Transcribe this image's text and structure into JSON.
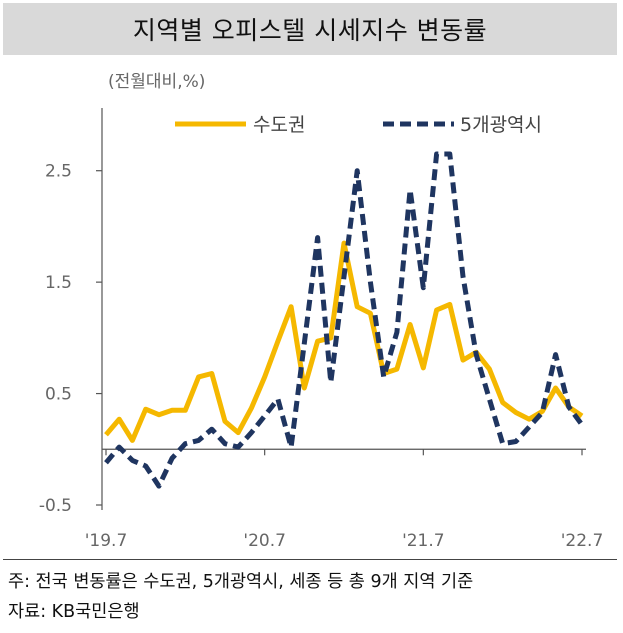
{
  "title": "지역별 오피스텔 시세지수 변동률",
  "footnotes": {
    "note": "주: 전국 변동률은 수도권, 5개광역시, 세종 등 총 9개 지역 기준",
    "source": "자료: KB국민은행"
  },
  "chart_data": {
    "type": "line",
    "ylabel": "(전월대비,%)",
    "ylim": [
      -0.5,
      3.0
    ],
    "yticks": [
      2.5,
      1.5,
      0.5,
      -0.5
    ],
    "ytick_labels": [
      "2.5",
      "1.5",
      "0.5",
      "-0.5"
    ],
    "xtick_labels": [
      "'19.7",
      "'20.7",
      "'21.7",
      "'22.7"
    ],
    "xtick_index": [
      0,
      12,
      24,
      36
    ],
    "zero_line": true,
    "grid": false,
    "legend_position": "top",
    "colors": {
      "capital": "#f5b800",
      "metro": "#1f3560"
    },
    "series": [
      {
        "name": "수도권",
        "style": "solid",
        "values": [
          0.13,
          0.27,
          0.08,
          0.36,
          0.31,
          0.35,
          0.35,
          0.65,
          0.68,
          0.25,
          0.15,
          0.37,
          0.65,
          0.97,
          1.28,
          0.55,
          0.97,
          1.0,
          1.85,
          1.28,
          1.22,
          0.68,
          0.72,
          1.12,
          0.73,
          1.25,
          1.3,
          0.8,
          0.87,
          0.72,
          0.42,
          0.33,
          0.27,
          0.34,
          0.55,
          0.38,
          0.3
        ]
      },
      {
        "name": "5개광역시",
        "style": "dashed",
        "values": [
          -0.12,
          0.02,
          -0.1,
          -0.15,
          -0.33,
          -0.08,
          0.05,
          0.08,
          0.18,
          0.05,
          0.02,
          0.15,
          0.3,
          0.45,
          0.02,
          0.95,
          1.9,
          0.6,
          1.55,
          2.5,
          1.5,
          0.65,
          1.05,
          2.33,
          1.45,
          2.65,
          2.65,
          1.55,
          0.85,
          0.45,
          0.05,
          0.07,
          0.2,
          0.33,
          0.85,
          0.38,
          0.22
        ]
      }
    ]
  }
}
